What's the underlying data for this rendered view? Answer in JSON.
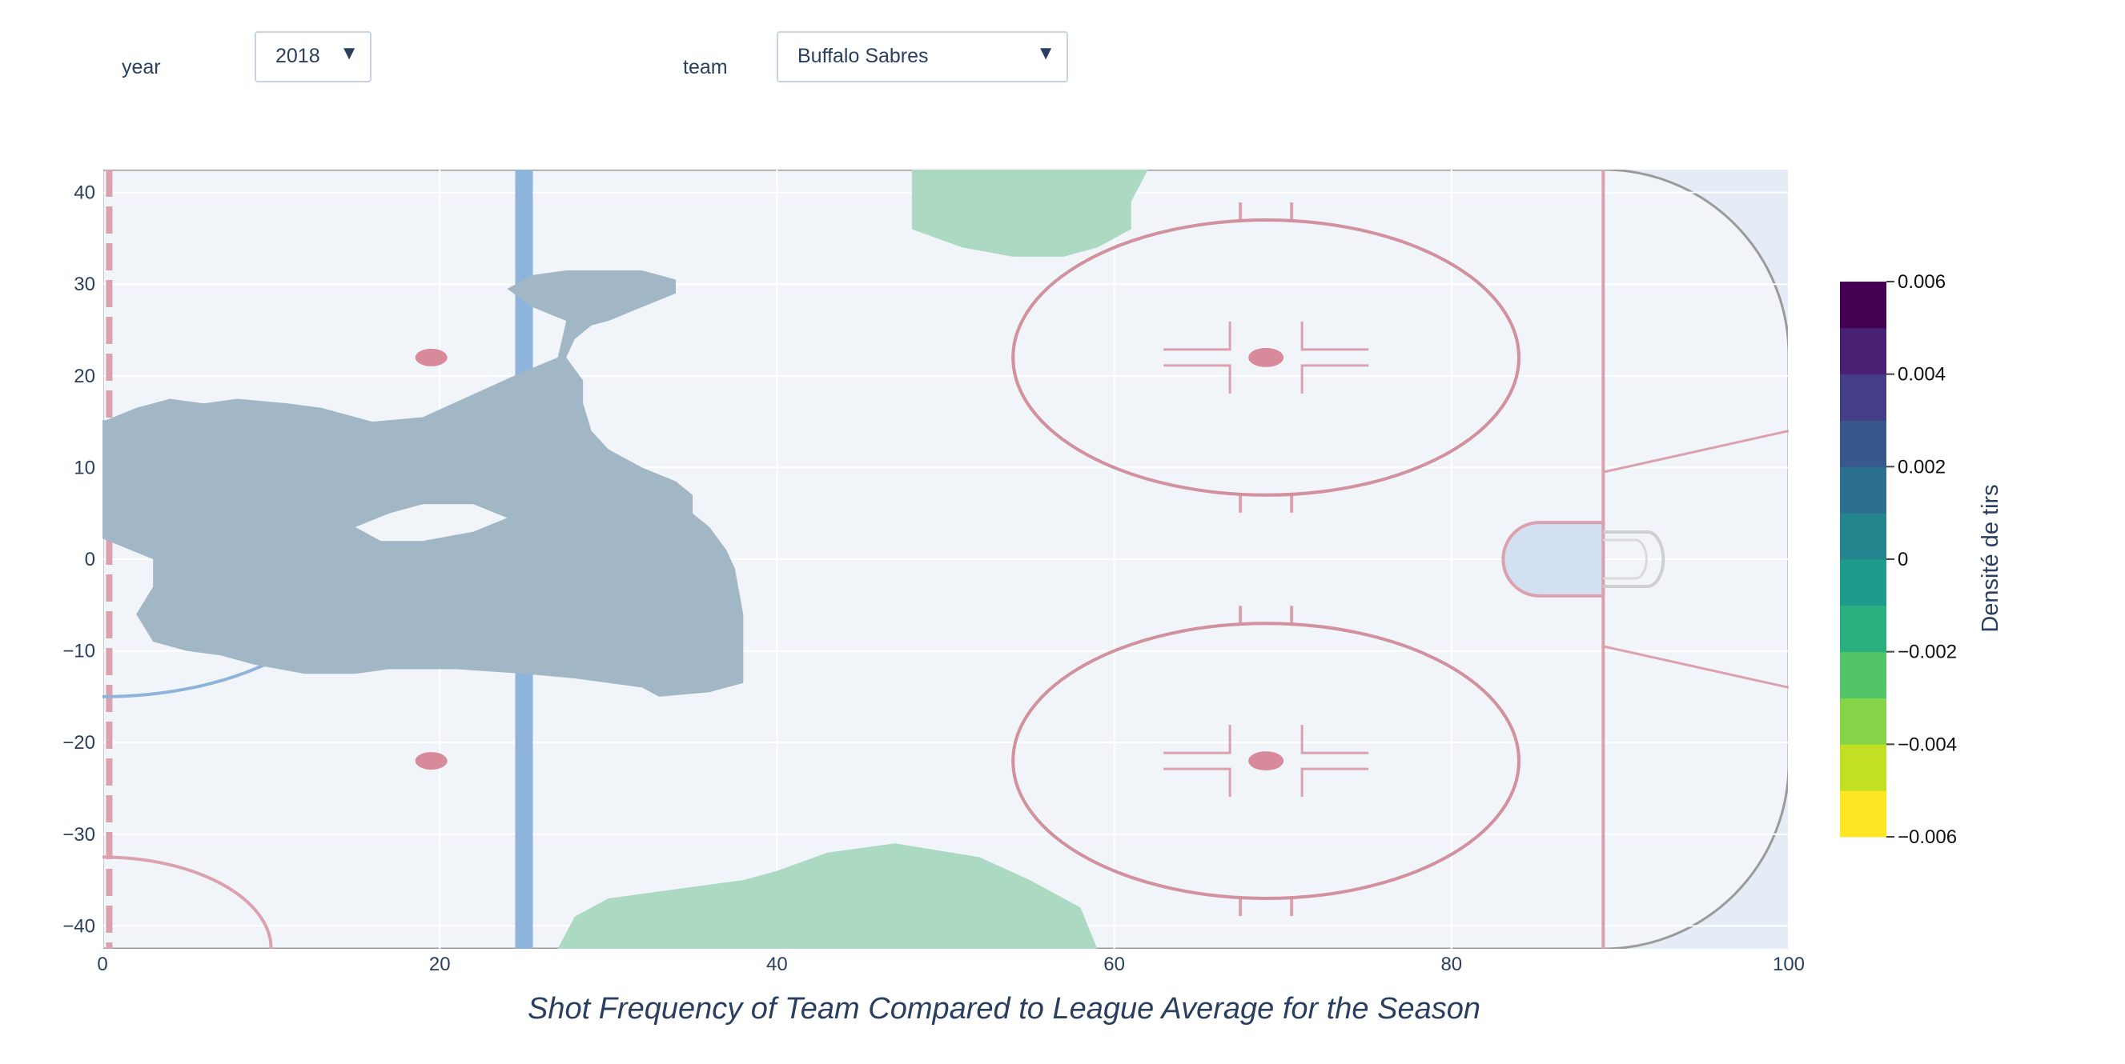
{
  "controls": {
    "year": {
      "label": "year",
      "value": "2018"
    },
    "team": {
      "label": "team",
      "value": "Buffalo Sabres"
    }
  },
  "colors": {
    "plot_bg": "#e5ecf6",
    "ice": "#f1f5fa",
    "grid": "#ffffff",
    "red_line": "#dba1ae",
    "blue_line": "#8fb4dc",
    "positive_fill": "#a2b7c5",
    "negative_fill": "#acd9c1"
  },
  "chart_data": {
    "type": "contour",
    "title": "Shot Frequency of Team Compared to League Average for the Season",
    "xlabel": "",
    "ylabel": "",
    "xlim": [
      0,
      100
    ],
    "ylim": [
      -42.5,
      42.5
    ],
    "x_ticks": [
      0,
      20,
      40,
      60,
      80,
      100
    ],
    "x_tick_labels": [
      "0",
      "20",
      "40",
      "60",
      "80",
      "100"
    ],
    "y_ticks": [
      40,
      30,
      20,
      10,
      0,
      -10,
      -20,
      -30,
      -40
    ],
    "y_tick_labels": [
      "40",
      "30",
      "20",
      "10",
      "0",
      "−10",
      "−20",
      "−30",
      "−40"
    ],
    "grid": true,
    "background": "hockey rink half (offensive zone)",
    "colorbar": {
      "title": "Densité de tirs",
      "range": [
        -0.006,
        0.006
      ],
      "ticks": [
        0.006,
        0.004,
        0.002,
        0,
        -0.002,
        -0.004,
        -0.006
      ],
      "tick_labels": [
        "0.006",
        "0.004",
        "0.002",
        "0",
        "−0.002",
        "−0.004",
        "−0.006"
      ],
      "colorscale": [
        "#fde725",
        "#c2df23",
        "#86d549",
        "#52c569",
        "#2ab07f",
        "#1e9b8a",
        "#25858e",
        "#2d708e",
        "#38588c",
        "#433e85",
        "#482173",
        "#440154"
      ]
    },
    "regions": [
      {
        "sign": "positive",
        "level": "0.000 to 0.002",
        "points": [
          [
            24,
            29.5
          ],
          [
            25.5,
            31
          ],
          [
            27.5,
            31.5
          ],
          [
            32,
            31.5
          ],
          [
            34,
            30.5
          ],
          [
            34,
            29
          ],
          [
            32,
            27.5
          ],
          [
            30,
            26
          ],
          [
            29,
            25.5
          ],
          [
            28,
            24
          ],
          [
            27.5,
            22
          ],
          [
            28.5,
            19.5
          ],
          [
            28.5,
            17
          ],
          [
            29,
            14
          ],
          [
            30,
            12
          ],
          [
            32,
            10
          ],
          [
            34,
            8.5
          ],
          [
            35,
            7
          ],
          [
            35,
            5
          ],
          [
            36,
            3.5
          ],
          [
            37,
            1
          ],
          [
            37.5,
            -1
          ],
          [
            38,
            -6
          ],
          [
            38,
            -9
          ],
          [
            38,
            -13.5
          ],
          [
            36,
            -14.5
          ],
          [
            33,
            -15
          ],
          [
            32,
            -14
          ],
          [
            28,
            -13
          ],
          [
            25,
            -12.5
          ],
          [
            21,
            -12
          ],
          [
            17,
            -12
          ],
          [
            15,
            -12.5
          ],
          [
            12,
            -12.5
          ],
          [
            9,
            -11.5
          ],
          [
            7,
            -10.5
          ],
          [
            5,
            -10
          ],
          [
            3,
            -9
          ],
          [
            2,
            -6
          ],
          [
            3,
            -3
          ],
          [
            3,
            0
          ],
          [
            1,
            1.5
          ],
          [
            -1,
            3
          ],
          [
            -3,
            5
          ],
          [
            -4,
            7
          ],
          [
            -4,
            10
          ],
          [
            -3,
            12
          ],
          [
            -2,
            13.5
          ],
          [
            0,
            15
          ],
          [
            2,
            16.5
          ],
          [
            4,
            17.5
          ],
          [
            6,
            17
          ],
          [
            8,
            17.5
          ],
          [
            11,
            17
          ],
          [
            13,
            16.5
          ],
          [
            16,
            15
          ],
          [
            19,
            15.5
          ],
          [
            22,
            18
          ],
          [
            25,
            20.5
          ],
          [
            27,
            22
          ],
          [
            27.5,
            26
          ],
          [
            25.5,
            27.5
          ],
          [
            24,
            29.5
          ]
        ]
      },
      {
        "sign": "hole",
        "points": [
          [
            17,
            5
          ],
          [
            19,
            6
          ],
          [
            22,
            6
          ],
          [
            24,
            4.5
          ],
          [
            22,
            3
          ],
          [
            19,
            2
          ],
          [
            16.5,
            2
          ],
          [
            15,
            3.5
          ],
          [
            17,
            5
          ]
        ]
      },
      {
        "sign": "negative",
        "level": "-0.002 to 0.000",
        "points": [
          [
            48,
            42.5
          ],
          [
            48,
            36
          ],
          [
            51,
            34
          ],
          [
            54,
            33
          ],
          [
            57,
            33
          ],
          [
            59,
            34
          ],
          [
            61,
            36
          ],
          [
            61,
            39
          ],
          [
            62,
            42.5
          ]
        ]
      },
      {
        "sign": "negative",
        "level": "-0.002 to 0.000",
        "points": [
          [
            27,
            -42.5
          ],
          [
            28,
            -39
          ],
          [
            30,
            -37
          ],
          [
            34,
            -36
          ],
          [
            38,
            -35
          ],
          [
            40,
            -34
          ],
          [
            43,
            -32
          ],
          [
            47,
            -31
          ],
          [
            52,
            -32.5
          ],
          [
            55,
            -35
          ],
          [
            58,
            -38
          ],
          [
            59,
            -42.5
          ]
        ]
      }
    ]
  }
}
